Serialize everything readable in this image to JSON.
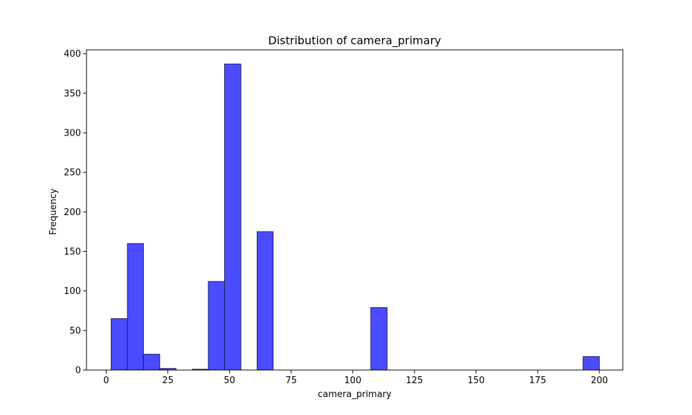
{
  "chart_data": {
    "type": "bar",
    "title": "Distribution of camera_primary",
    "xlabel": "camera_primary",
    "ylabel": "Frequency",
    "xlim": [
      -8,
      209.5
    ],
    "ylim": [
      0,
      405
    ],
    "x_ticks": [
      0,
      25,
      50,
      75,
      100,
      125,
      150,
      175,
      200
    ],
    "y_ticks": [
      0,
      50,
      100,
      150,
      200,
      250,
      300,
      350,
      400
    ],
    "grid": false,
    "legend": "none",
    "bar_color": "#4b4bff",
    "bar_edge_color": "#1e1e55",
    "bins": [
      {
        "x0": 2.0,
        "x1": 8.6,
        "count": 65
      },
      {
        "x0": 8.6,
        "x1": 15.1,
        "count": 160
      },
      {
        "x0": 15.1,
        "x1": 21.7,
        "count": 20
      },
      {
        "x0": 21.7,
        "x1": 28.3,
        "count": 2
      },
      {
        "x0": 34.9,
        "x1": 41.4,
        "count": 1
      },
      {
        "x0": 41.4,
        "x1": 48.0,
        "count": 112
      },
      {
        "x0": 48.0,
        "x1": 54.6,
        "count": 387
      },
      {
        "x0": 61.2,
        "x1": 67.7,
        "count": 175
      },
      {
        "x0": 107.3,
        "x1": 113.9,
        "count": 79
      },
      {
        "x0": 193.4,
        "x1": 200.0,
        "count": 17
      }
    ]
  }
}
